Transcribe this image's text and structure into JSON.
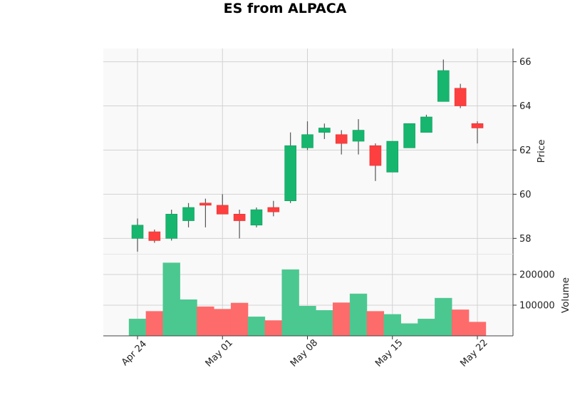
{
  "chart_data": {
    "type": "candlestick",
    "title": "ES from ALPACA",
    "price_ylabel": "Price",
    "volume_ylabel": "Volume",
    "price_yticks": [
      58,
      60,
      62,
      64,
      66
    ],
    "price_ylim": [
      57.3,
      66.6
    ],
    "volume_yticks": [
      100000,
      200000
    ],
    "volume_yticklabels": [
      "100000",
      "200000"
    ],
    "volume_ylim": [
      0,
      265000
    ],
    "x_ticks": [
      {
        "index": 0,
        "label": "Apr 24"
      },
      {
        "index": 5,
        "label": "May 01"
      },
      {
        "index": 10,
        "label": "May 08"
      },
      {
        "index": 15,
        "label": "May 15"
      },
      {
        "index": 20,
        "label": "May 22"
      }
    ],
    "grid": true,
    "colors": {
      "up": "#16b66e",
      "down": "#fd3f3f",
      "up_volume": "#4bc890",
      "down_volume": "#fe6b6b",
      "wick": "#555555",
      "panel_bg": "#f9f9f9",
      "grid": "#d2d2d2"
    },
    "candles": [
      {
        "date": "Apr 24",
        "open": 58.0,
        "high": 58.9,
        "low": 57.4,
        "close": 58.6,
        "volume": 55000
      },
      {
        "date": "Apr 25",
        "open": 58.3,
        "high": 58.4,
        "low": 57.8,
        "close": 57.9,
        "volume": 80000
      },
      {
        "date": "Apr 26",
        "open": 58.0,
        "high": 59.3,
        "low": 57.9,
        "close": 59.1,
        "volume": 238000
      },
      {
        "date": "Apr 27",
        "open": 58.8,
        "high": 59.6,
        "low": 58.5,
        "close": 59.4,
        "volume": 118000
      },
      {
        "date": "Apr 28",
        "open": 59.6,
        "high": 59.8,
        "low": 58.5,
        "close": 59.5,
        "volume": 95000
      },
      {
        "date": "May 01",
        "open": 59.5,
        "high": 60.0,
        "low": 59.1,
        "close": 59.1,
        "volume": 87000
      },
      {
        "date": "May 02",
        "open": 59.1,
        "high": 59.3,
        "low": 58.0,
        "close": 58.8,
        "volume": 107000
      },
      {
        "date": "May 03",
        "open": 58.6,
        "high": 59.4,
        "low": 58.5,
        "close": 59.3,
        "volume": 62000
      },
      {
        "date": "May 04",
        "open": 59.4,
        "high": 59.7,
        "low": 59.0,
        "close": 59.2,
        "volume": 50000
      },
      {
        "date": "May 05",
        "open": 59.7,
        "high": 62.8,
        "low": 59.6,
        "close": 62.2,
        "volume": 216000
      },
      {
        "date": "May 08",
        "open": 62.1,
        "high": 63.3,
        "low": 62.0,
        "close": 62.7,
        "volume": 97000
      },
      {
        "date": "May 09",
        "open": 62.8,
        "high": 63.2,
        "low": 62.5,
        "close": 63.0,
        "volume": 83000
      },
      {
        "date": "May 10",
        "open": 62.7,
        "high": 62.9,
        "low": 61.8,
        "close": 62.3,
        "volume": 108000
      },
      {
        "date": "May 11",
        "open": 62.4,
        "high": 63.4,
        "low": 61.8,
        "close": 62.9,
        "volume": 137000
      },
      {
        "date": "May 12",
        "open": 62.2,
        "high": 62.3,
        "low": 60.6,
        "close": 61.3,
        "volume": 80000
      },
      {
        "date": "May 15",
        "open": 61.0,
        "high": 62.4,
        "low": 61.0,
        "close": 62.4,
        "volume": 70000
      },
      {
        "date": "May 16",
        "open": 62.1,
        "high": 63.2,
        "low": 62.1,
        "close": 63.2,
        "volume": 40000
      },
      {
        "date": "May 17",
        "open": 62.8,
        "high": 63.6,
        "low": 62.8,
        "close": 63.5,
        "volume": 55000
      },
      {
        "date": "May 18",
        "open": 64.2,
        "high": 66.1,
        "low": 64.2,
        "close": 65.6,
        "volume": 123000
      },
      {
        "date": "May 19",
        "open": 64.8,
        "high": 65.0,
        "low": 63.9,
        "close": 64.0,
        "volume": 85000
      },
      {
        "date": "May 22",
        "open": 63.2,
        "high": 63.3,
        "low": 62.3,
        "close": 63.0,
        "volume": 45000
      }
    ]
  }
}
